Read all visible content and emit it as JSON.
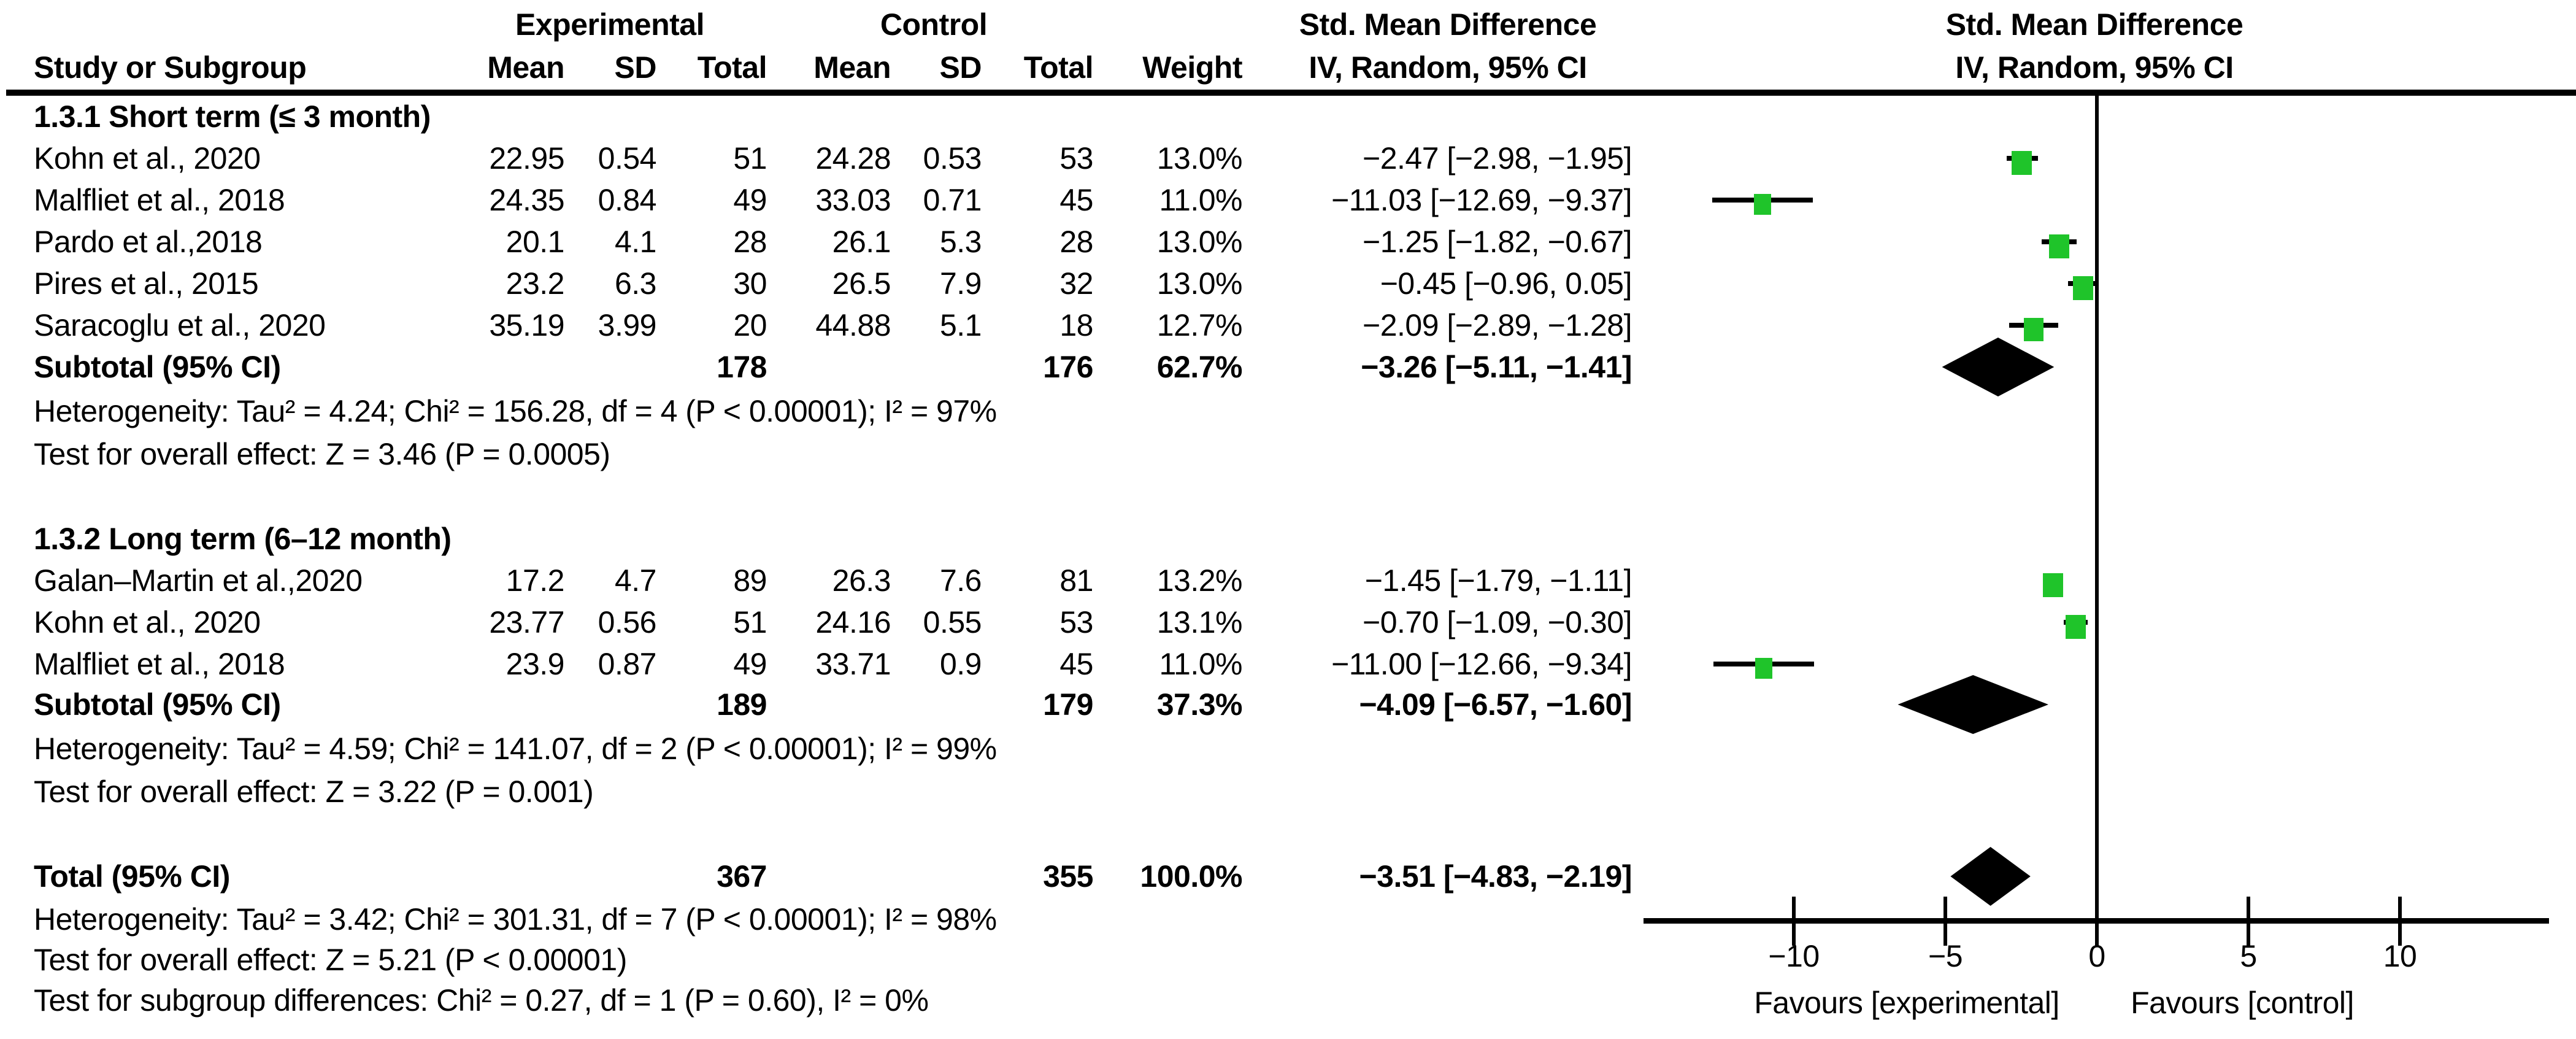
{
  "header": {
    "exp": "Experimental",
    "ctl": "Control",
    "smd": "Std. Mean Difference",
    "iv": "IV, Random, 95% CI",
    "smd2": "Std. Mean Difference",
    "iv2": "IV, Random, 95% CI",
    "study": "Study or Subgroup",
    "mean": "Mean",
    "sd": "SD",
    "total": "Total",
    "weight": "Weight"
  },
  "g1": {
    "title": "1.3.1 Short term (≤ 3 month)",
    "rows": [
      {
        "name": "Kohn et al., 2020",
        "mean_e": "22.95",
        "sd_e": "0.54",
        "n_e": "51",
        "mean_c": "24.28",
        "sd_c": "0.53",
        "n_c": "53",
        "weight": "13.0%",
        "ci": "−2.47 [−2.98, −1.95]"
      },
      {
        "name": "Malfliet et al., 2018",
        "mean_e": "24.35",
        "sd_e": "0.84",
        "n_e": "49",
        "mean_c": "33.03",
        "sd_c": "0.71",
        "n_c": "45",
        "weight": "11.0%",
        "ci": "−11.03 [−12.69, −9.37]"
      },
      {
        "name": "Pardo et al.,2018",
        "mean_e": "20.1",
        "sd_e": "4.1",
        "n_e": "28",
        "mean_c": "26.1",
        "sd_c": "5.3",
        "n_c": "28",
        "weight": "13.0%",
        "ci": "−1.25 [−1.82, −0.67]"
      },
      {
        "name": "Pires et al., 2015",
        "mean_e": "23.2",
        "sd_e": "6.3",
        "n_e": "30",
        "mean_c": "26.5",
        "sd_c": "7.9",
        "n_c": "32",
        "weight": "13.0%",
        "ci": "−0.45 [−0.96, 0.05]"
      },
      {
        "name": "Saracoglu et al., 2020",
        "mean_e": "35.19",
        "sd_e": "3.99",
        "n_e": "20",
        "mean_c": "44.88",
        "sd_c": "5.1",
        "n_c": "18",
        "weight": "12.7%",
        "ci": "−2.09 [−2.89, −1.28]"
      }
    ],
    "subtotal": {
      "label": "Subtotal (95% CI)",
      "n_e": "178",
      "n_c": "176",
      "weight": "62.7%",
      "ci": "−3.26 [−5.11, −1.41]"
    },
    "het": "Heterogeneity: Tau² = 4.24; Chi² = 156.28, df = 4 (P < 0.00001); I² = 97%",
    "test": "Test for overall effect: Z = 3.46 (P = 0.0005)"
  },
  "g2": {
    "title": "1.3.2 Long term (6–12 month)",
    "rows": [
      {
        "name": "Galan–Martin et al.,2020",
        "mean_e": "17.2",
        "sd_e": "4.7",
        "n_e": "89",
        "mean_c": "26.3",
        "sd_c": "7.6",
        "n_c": "81",
        "weight": "13.2%",
        "ci": "−1.45 [−1.79, −1.11]"
      },
      {
        "name": "Kohn et al., 2020",
        "mean_e": "23.77",
        "sd_e": "0.56",
        "n_e": "51",
        "mean_c": "24.16",
        "sd_c": "0.55",
        "n_c": "53",
        "weight": "13.1%",
        "ci": "−0.70 [−1.09, −0.30]"
      },
      {
        "name": "Malfliet et al., 2018",
        "mean_e": "23.9",
        "sd_e": "0.87",
        "n_e": "49",
        "mean_c": "33.71",
        "sd_c": "0.9",
        "n_c": "45",
        "weight": "11.0%",
        "ci": "−11.00 [−12.66, −9.34]"
      }
    ],
    "subtotal": {
      "label": "Subtotal (95% CI)",
      "n_e": "189",
      "n_c": "179",
      "weight": "37.3%",
      "ci": "−4.09 [−6.57, −1.60]"
    },
    "het": "Heterogeneity: Tau² = 4.59; Chi² = 141.07, df = 2 (P < 0.00001); I² = 99%",
    "test": "Test for overall effect: Z = 3.22 (P = 0.001)"
  },
  "totals": {
    "label": "Total (95% CI)",
    "n_e": "367",
    "n_c": "355",
    "weight": "100.0%",
    "ci": "−3.51 [−4.83, −2.19]",
    "het": "Heterogeneity: Tau² = 3.42; Chi² = 301.31, df = 7 (P < 0.00001); I² = 98%",
    "test": "Test for overall effect: Z = 5.21 (P < 0.00001)",
    "subgroup_test": "Test for subgroup differences: Chi² = 0.27, df = 1 (P = 0.60), I² = 0%"
  },
  "axis": {
    "tick_labels": [
      "−10",
      "−5",
      "0",
      "5",
      "10"
    ],
    "favours_left": "Favours [experimental]",
    "favours_right": "Favours [control]"
  },
  "chart_data": {
    "type": "forest",
    "effect_measure": "Std. Mean Difference, IV, Random, 95% CI",
    "xlim": [
      -15,
      15
    ],
    "tick_values": [
      -10,
      -5,
      0,
      5,
      10
    ],
    "zero_line": 0,
    "marker_color": "#1fc42a",
    "diamond_color": "#000000",
    "studies": [
      {
        "group": "1.3.1 Short term (≤ 3 month)",
        "name": "Kohn et al., 2020",
        "est": -2.47,
        "lo": -2.98,
        "hi": -1.95,
        "weight_pct": 13.0
      },
      {
        "group": "1.3.1 Short term (≤ 3 month)",
        "name": "Malfliet et al., 2018",
        "est": -11.03,
        "lo": -12.69,
        "hi": -9.37,
        "weight_pct": 11.0
      },
      {
        "group": "1.3.1 Short term (≤ 3 month)",
        "name": "Pardo et al.,2018",
        "est": -1.25,
        "lo": -1.82,
        "hi": -0.67,
        "weight_pct": 13.0
      },
      {
        "group": "1.3.1 Short term (≤ 3 month)",
        "name": "Pires et al., 2015",
        "est": -0.45,
        "lo": -0.96,
        "hi": 0.05,
        "weight_pct": 13.0
      },
      {
        "group": "1.3.1 Short term (≤ 3 month)",
        "name": "Saracoglu et al., 2020",
        "est": -2.09,
        "lo": -2.89,
        "hi": -1.28,
        "weight_pct": 12.7
      },
      {
        "group": "1.3.2 Long term (6–12 month)",
        "name": "Galan–Martin et al.,2020",
        "est": -1.45,
        "lo": -1.79,
        "hi": -1.11,
        "weight_pct": 13.2
      },
      {
        "group": "1.3.2 Long term (6–12 month)",
        "name": "Kohn et al., 2020",
        "est": -0.7,
        "lo": -1.09,
        "hi": -0.3,
        "weight_pct": 13.1
      },
      {
        "group": "1.3.2 Long term (6–12 month)",
        "name": "Malfliet et al., 2018",
        "est": -11.0,
        "lo": -12.66,
        "hi": -9.34,
        "weight_pct": 11.0
      }
    ],
    "diamonds": [
      {
        "name": "Subtotal short term (95% CI)",
        "est": -3.26,
        "lo": -5.11,
        "hi": -1.41
      },
      {
        "name": "Subtotal long term (95% CI)",
        "est": -4.09,
        "lo": -6.57,
        "hi": -1.6
      },
      {
        "name": "Total (95% CI)",
        "est": -3.51,
        "lo": -4.83,
        "hi": -2.19
      }
    ]
  }
}
